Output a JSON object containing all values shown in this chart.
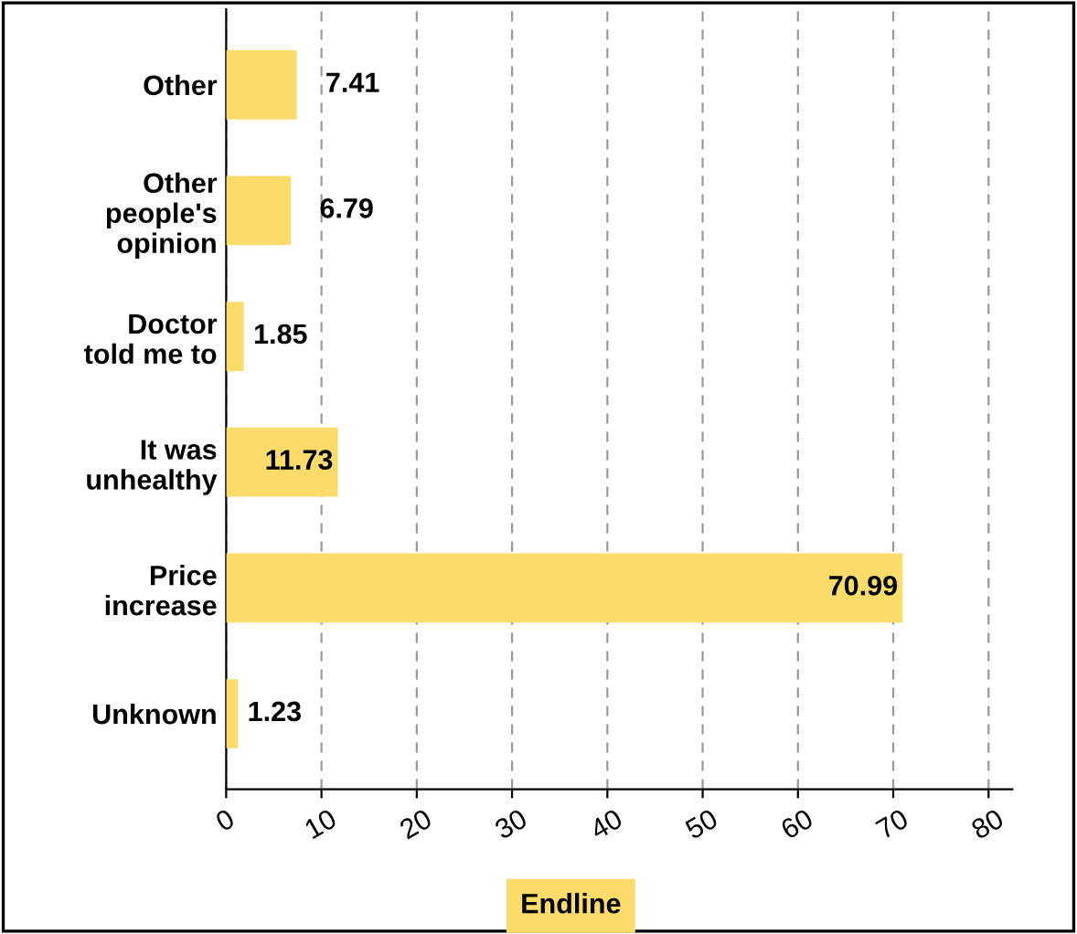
{
  "chart_data": {
    "type": "bar",
    "orientation": "horizontal",
    "xlabel": "Endline",
    "categories": [
      "Other",
      "Other\npeople's\nopinion",
      "Doctor\ntold me to",
      "It was\nunhealthy",
      "Price\nincrease",
      "Unknown"
    ],
    "values": [
      7.41,
      6.79,
      1.85,
      11.73,
      70.99,
      1.23
    ],
    "color": "#fbdc6a",
    "xlim": [
      0,
      82.5
    ],
    "xticks": [
      0,
      10,
      20,
      30,
      40,
      50,
      60,
      70,
      80
    ],
    "grid": "x",
    "data_labels": true
  }
}
